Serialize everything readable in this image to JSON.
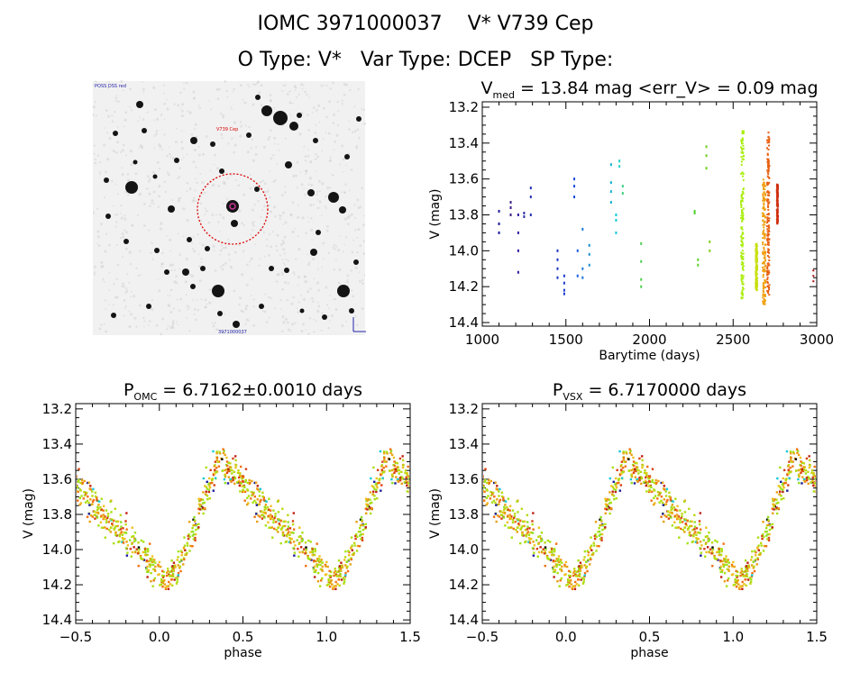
{
  "header": {
    "line1": "IOMC 3971000037    V* V739 Cep",
    "line2": "O Type: V*   Var Type: DCEP   SP Type:"
  },
  "finder_chart": {
    "top_left_label": "POSS DSS red",
    "target_label": "V739 Cep",
    "bottom_label": "3971000037",
    "circle_color": "#dd0000",
    "label_color": "#2222aa"
  },
  "chart_data": [
    {
      "type": "scatter",
      "title_main": "V",
      "title_sub": "med",
      "title_rest": " = 13.84 mag <err_V> = 0.09 mag",
      "xlabel": "Barytime (days)",
      "ylabel": "V (mag)",
      "xlim": [
        1000,
        3000
      ],
      "ylim": [
        14.42,
        13.17
      ],
      "xticks": [
        "1000",
        "1500",
        "2000",
        "2500",
        "3000"
      ],
      "yticks": [
        "13.2",
        "13.4",
        "13.6",
        "13.8",
        "14.0",
        "14.2",
        "14.4"
      ],
      "y_inverted": true,
      "color_scale": "rainbow by time (blue early → red late)",
      "clusters": [
        {
          "x": 1100,
          "y": [
            13.78,
            13.85,
            13.9
          ],
          "color": "#1a1a9a"
        },
        {
          "x": 1170,
          "y": [
            13.73,
            13.76,
            13.8
          ],
          "color": "#3a1a8a"
        },
        {
          "x": 1215,
          "y": [
            13.8,
            13.9,
            14.0,
            14.12
          ],
          "color": "#2a1aa0"
        },
        {
          "x": 1250,
          "y": [
            13.79,
            13.81
          ],
          "color": "#3030a8"
        },
        {
          "x": 1290,
          "y": [
            13.65,
            13.7,
            13.8
          ],
          "color": "#2030b0"
        },
        {
          "x": 1450,
          "y": [
            14.0,
            14.05,
            14.1,
            14.15
          ],
          "color": "#1a3ac0"
        },
        {
          "x": 1490,
          "y": [
            14.14,
            14.18,
            14.22,
            14.24
          ],
          "color": "#1a3ad0"
        },
        {
          "x": 1550,
          "y": [
            13.6,
            13.64,
            13.7
          ],
          "color": "#1a4ad8"
        },
        {
          "x": 1570,
          "y": [
            14.0,
            14.14
          ],
          "color": "#1a60e0"
        },
        {
          "x": 1600,
          "y": [
            13.88,
            14.1,
            14.15
          ],
          "color": "#1a7ad8"
        },
        {
          "x": 1640,
          "y": [
            13.97,
            14.02,
            14.08
          ],
          "color": "#1a90d0"
        },
        {
          "x": 1770,
          "y": [
            13.52,
            13.62,
            13.67,
            13.73
          ],
          "color": "#14b0d0"
        },
        {
          "x": 1800,
          "y": [
            13.8,
            13.83,
            13.9
          ],
          "color": "#14c8d8"
        },
        {
          "x": 1820,
          "y": [
            13.5,
            13.53
          ],
          "color": "#20d0c8"
        },
        {
          "x": 1840,
          "y": [
            13.64,
            13.68
          ],
          "color": "#40d080"
        },
        {
          "x": 1950,
          "y": [
            13.96,
            14.06,
            14.16,
            14.2
          ],
          "color": "#50d050"
        },
        {
          "x": 2270,
          "y": [
            13.78,
            13.79
          ],
          "color": "#50d030"
        },
        {
          "x": 2290,
          "y": [
            14.05,
            14.08
          ],
          "color": "#60d030"
        },
        {
          "x": 2340,
          "y": [
            13.42,
            13.47,
            13.54
          ],
          "color": "#70d020"
        },
        {
          "x": 2360,
          "y": [
            13.95,
            14.0
          ],
          "color": "#80d020"
        }
      ],
      "dense_strips": [
        {
          "x_center": 2555,
          "x_spread": 16,
          "y_from": 13.33,
          "y_to": 14.27,
          "color": "#aaee10"
        },
        {
          "x_center": 2640,
          "x_spread": 10,
          "y_from": 13.96,
          "y_to": 14.22,
          "color": "#c8e010"
        },
        {
          "x_center": 2685,
          "x_spread": 18,
          "y_from": 13.6,
          "y_to": 14.3,
          "color": "#f0a010"
        },
        {
          "x_center": 2710,
          "x_spread": 14,
          "y_from": 13.34,
          "y_to": 14.25,
          "color": "#e86010"
        },
        {
          "x_center": 2765,
          "x_spread": 6,
          "y_from": 13.63,
          "y_to": 13.85,
          "color": "#d03010"
        }
      ],
      "late_points": {
        "x": 2980,
        "y": [
          14.11,
          14.14,
          14.17
        ],
        "color": "#b01010"
      }
    },
    {
      "type": "scatter",
      "title_main": "P",
      "title_sub": "OMC",
      "title_rest": " = 6.7162±0.0010 days",
      "xlabel": "phase",
      "ylabel": "V (mag)",
      "xlim": [
        -0.5,
        1.5
      ],
      "ylim": [
        14.42,
        13.17
      ],
      "xticks": [
        "−0.5",
        "0.0",
        "0.5",
        "1.0",
        "1.5"
      ],
      "yticks": [
        "13.2",
        "13.4",
        "13.6",
        "13.8",
        "14.0",
        "14.2",
        "14.4"
      ],
      "light_curve": {
        "mean_mag": 13.83,
        "amplitude": 0.7,
        "max_phase": 0.35,
        "min_phase": 0.0,
        "scatter": 0.05,
        "period_repeats": 2
      }
    },
    {
      "type": "scatter",
      "title_main": "P",
      "title_sub": "VSX",
      "title_rest": " = 6.7170000 days",
      "xlabel": "phase",
      "ylabel": "V (mag)",
      "xlim": [
        -0.5,
        1.5
      ],
      "ylim": [
        14.42,
        13.17
      ],
      "xticks": [
        "−0.5",
        "0.0",
        "0.5",
        "1.0",
        "1.5"
      ],
      "yticks": [
        "13.2",
        "13.4",
        "13.6",
        "13.8",
        "14.0",
        "14.2",
        "14.4"
      ],
      "light_curve": {
        "mean_mag": 13.83,
        "amplitude": 0.7,
        "max_phase": 0.35,
        "min_phase": 0.0,
        "scatter": 0.05,
        "period_repeats": 2
      }
    }
  ]
}
